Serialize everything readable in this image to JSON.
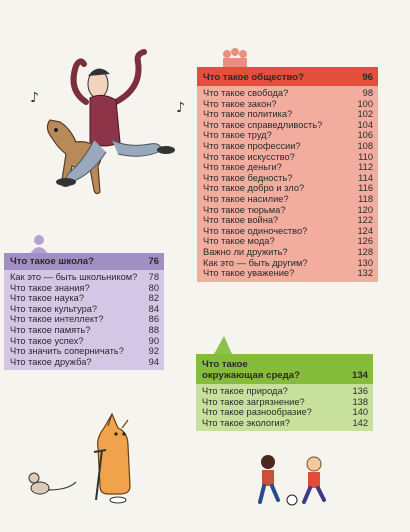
{
  "society": {
    "title": "Что такое общество?",
    "page": "96",
    "items": [
      {
        "label": "Что такое свобода?",
        "page": "98"
      },
      {
        "label": "Что такое закон?",
        "page": "100"
      },
      {
        "label": "Что такое политика?",
        "page": "102"
      },
      {
        "label": "Что такое справедливость?",
        "page": "104"
      },
      {
        "label": "Что такое труд?",
        "page": "106"
      },
      {
        "label": "Что такое профессии?",
        "page": "108"
      },
      {
        "label": "Что такое искусство?",
        "page": "110"
      },
      {
        "label": "Что такое деньги?",
        "page": "112"
      },
      {
        "label": "Что такое бедность?",
        "page": "114"
      },
      {
        "label": "Что такое добро и зло?",
        "page": "116"
      },
      {
        "label": "Что такое насилие?",
        "page": "118"
      },
      {
        "label": "Что такое тюрьма?",
        "page": "120"
      },
      {
        "label": "Что такое война?",
        "page": "122"
      },
      {
        "label": "Что такое одиночество?",
        "page": "124"
      },
      {
        "label": "Что такое мода?",
        "page": "126"
      },
      {
        "label": "Важно ли дружить?",
        "page": "128"
      },
      {
        "label": "Как это — быть другим?",
        "page": "130"
      },
      {
        "label": "Что такое уважение?",
        "page": "132"
      }
    ]
  },
  "school": {
    "title": "Что такое школа?",
    "page": "76",
    "items": [
      {
        "label": "Как это — быть школьником?",
        "page": "78"
      },
      {
        "label": "Что такое знания?",
        "page": "80"
      },
      {
        "label": "Что такое наука?",
        "page": "82"
      },
      {
        "label": "Что такое культура?",
        "page": "84"
      },
      {
        "label": "Что такое интеллект?",
        "page": "86"
      },
      {
        "label": "Что такое память?",
        "page": "88"
      },
      {
        "label": "Что такое успех?",
        "page": "90"
      },
      {
        "label": "Что значить соперничать?",
        "page": "92"
      },
      {
        "label": "Что такое дружба?",
        "page": "94"
      }
    ]
  },
  "environment": {
    "title_line1": "Что такое",
    "title_line2": "окружающая среда?",
    "page": "134",
    "items": [
      {
        "label": "Что такое природа?",
        "page": "136"
      },
      {
        "label": "Что такое загрязнение?",
        "page": "138"
      },
      {
        "label": "Что такое разнообразие?",
        "page": "140"
      },
      {
        "label": "Что такое экология?",
        "page": "142"
      }
    ]
  },
  "colors": {
    "society_header": "#e2503c",
    "society_body": "#f2ad9e",
    "school_header": "#a18fc4",
    "school_body": "#d3c7e5",
    "environment_header": "#86bc3c",
    "environment_body": "#c7e09b"
  }
}
